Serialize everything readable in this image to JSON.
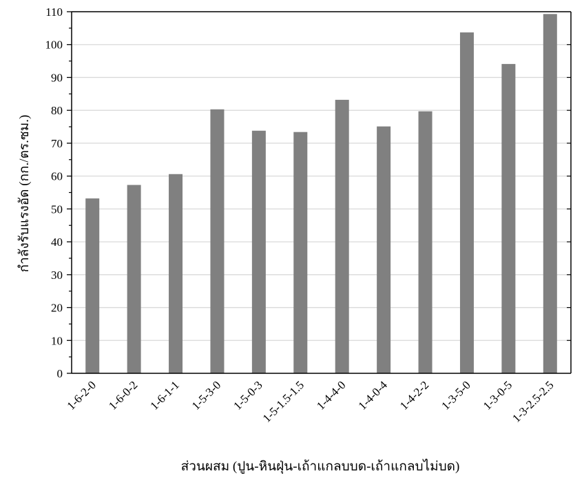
{
  "chart_data": {
    "type": "bar",
    "categories": [
      "1-6-2-0",
      "1-6-0-2",
      "1-6-1-1",
      "1-5-3-0",
      "1-5-0-3",
      "1-5-1.5-1.5",
      "1-4-4-0",
      "1-4-0-4",
      "1-4-2-2",
      "1-3-5-0",
      "1-3-0-5",
      "1-3-2.5-2.5"
    ],
    "values": [
      53.2,
      57.3,
      60.6,
      80.3,
      73.8,
      73.4,
      83.2,
      75.1,
      79.7,
      103.7,
      94.1,
      109.3
    ],
    "title": "",
    "xlabel": "ส่วนผสม (ปูน-หินฝุ่น-เถ้าแกลบบด-เถ้าแกลบไม่บด)",
    "ylabel": "กำลังรับแรงอัด (กก./ตร.ซม.)",
    "ylim": [
      0,
      110
    ],
    "yticks": [
      0,
      10,
      20,
      30,
      40,
      50,
      60,
      70,
      80,
      90,
      100,
      110
    ],
    "grid": true,
    "legend": "none",
    "bar_color": "#808080",
    "grid_color": "#d9d9d9",
    "axis_color": "#000000"
  }
}
